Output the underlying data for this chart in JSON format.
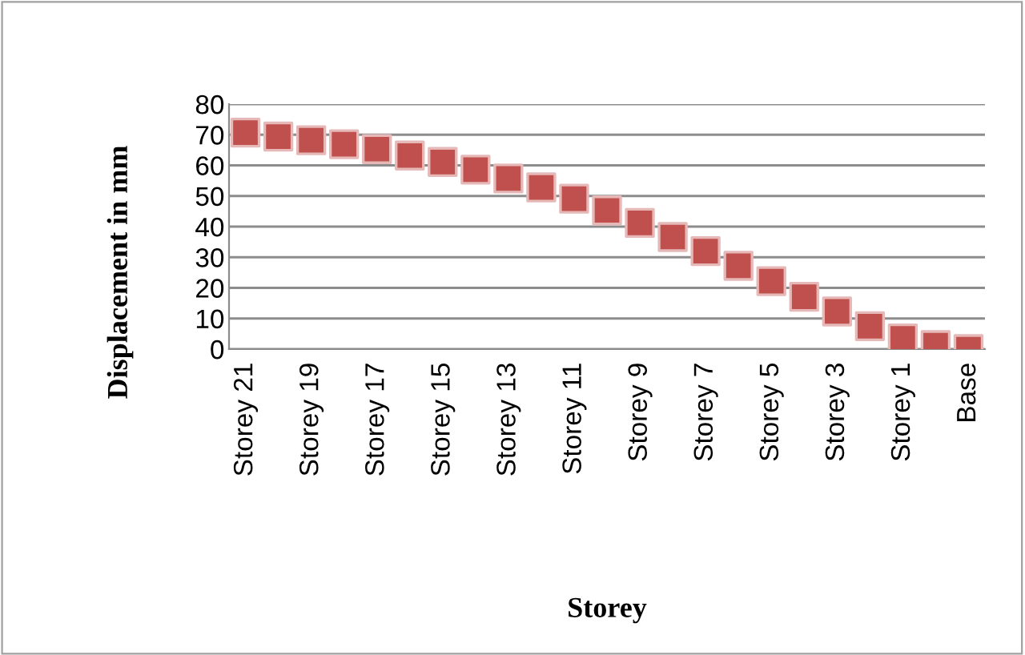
{
  "chart_data": {
    "type": "scatter",
    "xlabel": "Storey",
    "ylabel": "Displacement in mm",
    "categories": [
      "Storey 21",
      null,
      "Storey 19",
      null,
      "Storey 17",
      null,
      "Storey 15",
      null,
      "Storey 13",
      null,
      "Storey 11",
      null,
      "Storey 9",
      null,
      "Storey 7",
      null,
      "Storey 5",
      null,
      "Storey 3",
      null,
      "Storey 1",
      null,
      "Base"
    ],
    "series": [
      {
        "color": "#c0504d",
        "values": [
          70.7,
          69.4,
          68.2,
          66.9,
          65.3,
          63.2,
          61.1,
          58.6,
          55.7,
          52.8,
          49.1,
          45.3,
          41.2,
          36.6,
          32.0,
          27.2,
          22.2,
          17.1,
          12.3,
          7.5,
          3.5,
          1.3,
          0
        ]
      }
    ],
    "ylim": [
      0,
      80
    ],
    "yticks": [
      0,
      10,
      20,
      30,
      40,
      50,
      60,
      70,
      80
    ],
    "grid": "y",
    "marker": "square"
  }
}
